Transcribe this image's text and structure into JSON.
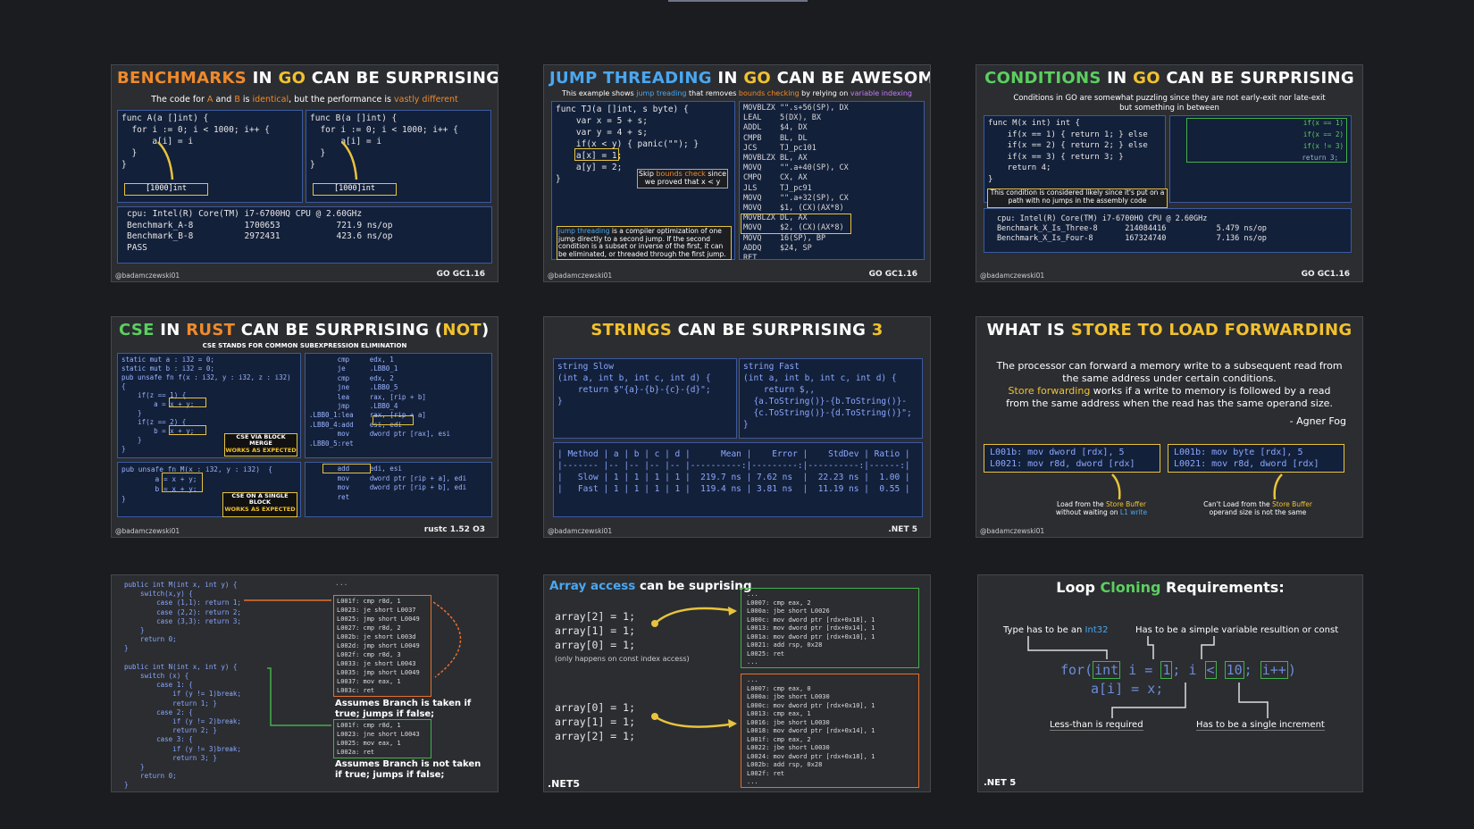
{
  "colors": {
    "background": "#1b1c1f",
    "card": "#2b2d31",
    "accent_orange": "#ef8a2c",
    "accent_yellow": "#f2c12e",
    "accent_green": "#5bcf5e",
    "accent_blue": "#4aa7f0",
    "code_bg": "#13203a"
  },
  "handle": "@badamczewski01",
  "c1": {
    "title": [
      "BENCHMARKS",
      "IN",
      "GO",
      "CAN BE SURPRISING"
    ],
    "subtitle": [
      "The code for ",
      "A",
      " and ",
      "B",
      " is ",
      "identical",
      ", but the performance is ",
      "vastly different"
    ],
    "codeA": "func A(a []int) {\n  for i := 0; i < 1000; i++ {\n      a[i] = i\n  }\n}",
    "codeB": "func B(a []int) {\n  for i := 0; i < 1000; i++ {\n      a[i] = i\n  }\n}",
    "tagA": "[1000]int",
    "tagB": "[1000]int",
    "bench": "cpu: Intel(R) Core(TM) i7-6700HQ CPU @ 2.60GHz\nBenchmark_A-8          1700653           721.9 ns/op\nBenchmark_B-8          2972431           423.6 ns/op\nPASS",
    "version": "GO GC1.16"
  },
  "c2": {
    "title": [
      "JUMP THREADING",
      "IN",
      "GO",
      "CAN BE AWESOME"
    ],
    "subtitle": [
      "This example shows ",
      "jump treading",
      " that removes ",
      "bounds checking",
      " by relying on ",
      "variable indexing"
    ],
    "code": "func TJ(a []int, s byte) {\n    var x = 5 + s;\n    var y = 4 + s;\n    if(x < y) { panic(\"\"); }\n    a[x] = 1;\n    a[y] = 2;\n}",
    "asm": "MOVBLZX \"\".s+56(SP), DX\nLEAL    5(DX), BX\nADDL    $4, DX\nCMPB    BL, DL\nJCS     TJ_pc101\nMOVBLZX BL, AX\nMOVQ    \"\".a+40(SP), CX\nCMPQ    CX, AX\nJLS     TJ_pc91\nMOVQ    \"\".a+32(SP), CX\nMOVQ    $1, (CX)(AX*8)\nMOVBLZX DL, AX\nMOVQ    $2, (CX)(AX*8)\nMOVQ    16(SP), BP\nADDQ    $24, SP\nRET",
    "skip_note": [
      "Skip ",
      "bounds check",
      " since\nwe proved that x < y"
    ],
    "jt_note": [
      "jump threading",
      " is a compiler optimization of one jump directly to a second jump. If the second condition is a subset or inverse of the first, it can be eliminated, or threaded through the first jump."
    ],
    "version": "GO GC1.16"
  },
  "c3": {
    "title": [
      "CONDITIONS",
      "IN",
      "GO",
      "CAN BE SURPRISING"
    ],
    "subtitle": "Conditions in GO are somewhat puzzling since they are not early-exit nor late-exit\nbut something in between",
    "code": "func M(x int) int {\n    if(x == 1) { return 1; } else\n    if(x == 2) { return 2; } else\n    if(x == 3) { return 3; }\n    return 4;\n}",
    "note": "This condition is considered likely since it's put on\na path with no jumps in the assembly code",
    "asm_labels": [
      "if(x == 1)",
      "if(x == 2)",
      "if(x != 3)",
      "return 3;"
    ],
    "bench": "cpu: Intel(R) Core(TM) i7-6700HQ CPU @ 2.60GHz\nBenchmark_X_Is_Three-8      214084416           5.479 ns/op\nBenchmark_X_Is_Four-8       167324740           7.136 ns/op",
    "version": "GO GC1.16"
  },
  "c4": {
    "title": [
      "CSE",
      "IN",
      "RUST",
      "CAN BE SURPRISING (",
      "NOT",
      ")"
    ],
    "subtitle": "CSE STANDS FOR COMMON SUBEXPRESSION ELIMINATION",
    "code1": "static mut a : i32 = 0;\nstatic mut b : i32 = 0;\npub unsafe fn f(x : i32, y : i32, z : i32)\n{\n    if(z == 1) {\n        a = x + y;\n    }\n    if(z == 2) {\n        b = x + y;\n    }\n}",
    "asm1": "       cmp     edx, 1\n       je      .LBB0_1\n       cmp     edx, 2\n       jne     .LBB0_5\n       lea     rax, [rip + b]\n       jmp     .LBB0_4\n.LBB0_1:lea    rax, [rip + a]\n.LBB0_4:add    esi, edi\n       mov     dword ptr [rax], esi\n.LBB0_5:ret",
    "note1": [
      "CSE VIA BLOCK\nMERGE",
      "WORKS AS EXPECTED"
    ],
    "code2": "pub unsafe fn M(x : i32, y : i32)  {\n        a = x + y;\n        b = x + y;\n}",
    "asm2": "       add     edi, esi\n       mov     dword ptr [rip + a], edi\n       mov     dword ptr [rip + b], edi\n       ret",
    "note2": [
      "CSE ON A SINGLE\nBLOCK",
      "WORKS AS EXPECTED"
    ],
    "version": "rustc 1.52 O3"
  },
  "c5": {
    "title": [
      "STRINGS",
      "CAN BE SURPRISING",
      "3"
    ],
    "code1": "string Slow\n(int a, int b, int c, int d) {\n    return $\"{a}-{b}-{c}-{d}\";\n}",
    "code2": "string Fast\n(int a, int b, int c, int d) {\n    return $,,\n  {a.ToString()}-{b.ToString()}-\n  {c.ToString()}-{d.ToString()}\";\n}",
    "table": "| Method | a | b | c | d |      Mean |    Error |    StdDev | Ratio |\n|------- |-- |-- |-- |-- |----------:|---------:|----------:|------:|\n|   Slow | 1 | 1 | 1 | 1 |  219.7 ns | 7.62 ns  |  22.23 ns |  1.00 |\n|   Fast | 1 | 1 | 1 | 1 |  119.4 ns | 3.81 ns  |  11.19 ns |  0.55 |",
    "version": ".NET 5"
  },
  "c6": {
    "title": [
      "WHAT IS",
      "STORE TO LOAD FORWARDING"
    ],
    "text1": "The processor can forward a memory write to a subsequent read from\nthe same address under certain conditions.",
    "text2": [
      "Store forwarding",
      " works if a write to memory is followed by a read\nfrom the same address when the read has the same operand size."
    ],
    "quote": "- Agner Fog",
    "asm1": "L001b: mov dword [rdx], 5\nL0021: mov r8d, dword [rdx]",
    "asm2": "L001b: mov byte [rdx], 5\nL0021: mov r8d, dword [rdx]",
    "note1": [
      "Load from the ",
      "Store Buffer",
      "\nwithout waiting on ",
      "L1 write"
    ],
    "note2": [
      "Can't Load from the ",
      "Store Buffer",
      "\noperand size is not the same"
    ]
  },
  "c7": {
    "code": "public int M(int x, int y) {\n    switch(x,y) {\n        case (1,1): return 1;\n        case (2,2): return 2;\n        case (3,3): return 3;\n    }\n    return 0;\n}\n\npublic int N(int x, int y) {\n    switch (x) {\n        case 1: {\n            if (y != 1)break;\n            return 1; }\n        case 2: {\n            if (y != 2)break;\n            return 2; }\n        case 3: {\n            if (y != 3)break;\n            return 3; }\n    }\n    return 0;\n}",
    "asm_top": "...",
    "asm1": "L001f: cmp r8d, 1\nL0023: je short L0037\nL0025: jmp short L0049\nL0027: cmp r8d, 2\nL002b: je short L003d\nL002d: jmp short L0049\nL002f: cmp r8d, 3\nL0033: je short L0043\nL0035: jmp short L0049\nL0037: mov eax, 1\nL003c: ret",
    "note1": "Assumes Branch is taken if\ntrue; jumps if false;",
    "asm2": "L001f: cmp r8d, 1\nL0023: jne short L0043\nL0025: mov eax, 1\nL002a: ret",
    "note2": "Assumes Branch is not taken\nif true; jumps if false;"
  },
  "c8": {
    "title": [
      "Array access",
      " can be suprising"
    ],
    "code1": "array[2] = 1;\narray[1] = 1;\narray[0] = 1;",
    "note": "(only happens on const index access)",
    "code2": "array[0] = 1;\narray[1] = 1;\narray[2] = 1;",
    "asm1": "...\nL0007: cmp eax, 2\nL000a: jbe short L0026\nL000c: mov dword ptr [rdx+0x18], 1\nL0013: mov dword ptr [rdx+0x14], 1\nL001a: mov dword ptr [rdx+0x10], 1\nL0021: add rsp, 0x28\nL0025: ret\n...",
    "asm2": "...\nL0007: cmp eax, 0\nL000a: jbe short L0030\nL000c: mov dword ptr [rdx+0x10], 1\nL0013: cmp eax, 1\nL0016: jbe short L0030\nL0018: mov dword ptr [rdx+0x14], 1\nL001f: cmp eax, 2\nL0022: jbe short L0030\nL0024: mov dword ptr [rdx+0x18], 1\nL002b: add rsp, 0x28\nL002f: ret\n...",
    "version": ".NET5"
  },
  "c9": {
    "title": [
      "Loop ",
      "Cloning",
      " Requirements:"
    ],
    "label1": [
      "Type has to be an ",
      "Int32"
    ],
    "label2": "Has to be a simple variable resultion or const",
    "code_for": "for",
    "code_parts": [
      "int",
      "i =",
      "1",
      ";",
      "i",
      "<",
      "10",
      ";",
      "i++",
      ")"
    ],
    "code_body": "a[i] = x;",
    "label3": "Less-than is required",
    "label4": "Has to be a single increment",
    "version": ".NET 5"
  }
}
